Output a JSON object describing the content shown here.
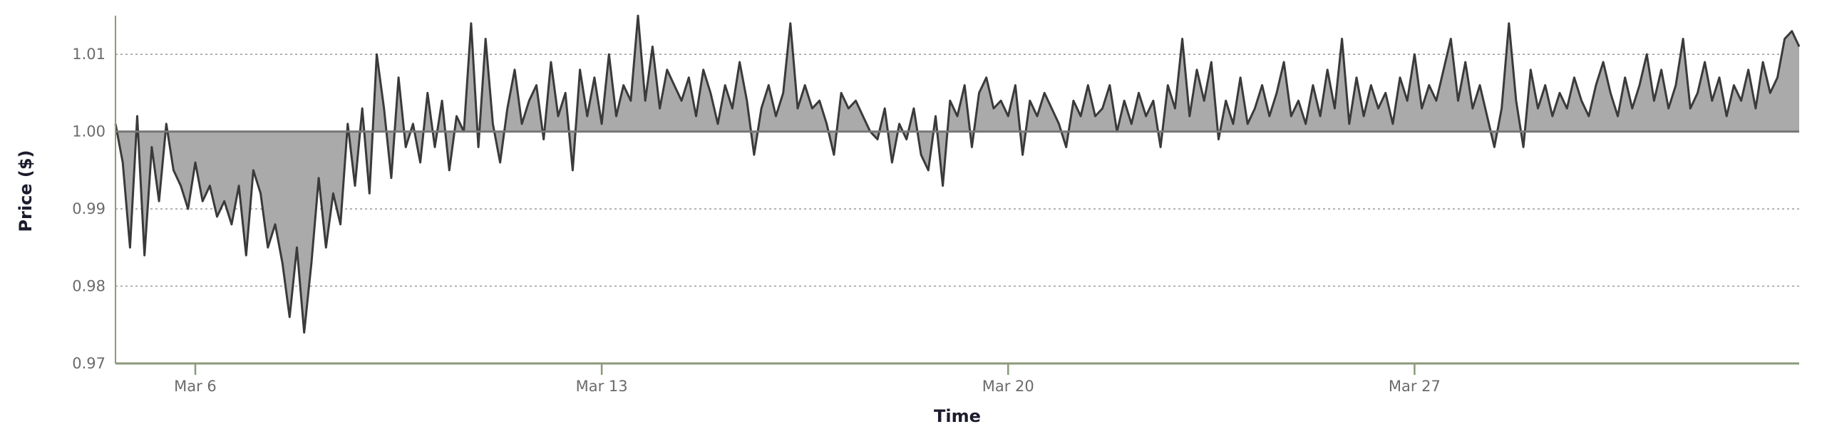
{
  "chart_data": {
    "type": "area",
    "title": "",
    "xlabel": "Time",
    "ylabel": "Price ($)",
    "baseline": 1.0,
    "ylim": [
      0.97,
      1.015
    ],
    "yticks": [
      {
        "value": 0.97,
        "label": "0.97"
      },
      {
        "value": 0.98,
        "label": "0.98"
      },
      {
        "value": 0.99,
        "label": "0.99"
      },
      {
        "value": 1.0,
        "label": "1.00"
      },
      {
        "value": 1.01,
        "label": "1.01"
      }
    ],
    "xlim": [
      "2024-03-04T15:00",
      "2024-04-02T15:00"
    ],
    "xticks": [
      {
        "date": "2024-03-06",
        "label": "Mar 6"
      },
      {
        "date": "2024-03-13",
        "label": "Mar 13"
      },
      {
        "date": "2024-03-20",
        "label": "Mar 20"
      },
      {
        "date": "2024-03-27",
        "label": "Mar 27"
      }
    ],
    "grid": {
      "horizontal": true,
      "vertical": false
    },
    "colors": {
      "line": "#3a3a3a",
      "fill": "#aaaaaa",
      "axis": "#8a9a7a",
      "baseline": "#777777",
      "grid": "#999999"
    },
    "series": [
      {
        "x": [
          "2024-03-04T15:00",
          "2024-03-04T18:00",
          "2024-03-04T21:00",
          "2024-03-05T00:00",
          "2024-03-05T03:00",
          "2024-03-05T06:00",
          "2024-03-05T09:00",
          "2024-03-05T12:00",
          "2024-03-05T15:00",
          "2024-03-05T18:00",
          "2024-03-05T21:00",
          "2024-03-06T00:00",
          "2024-03-06T03:00",
          "2024-03-06T06:00",
          "2024-03-06T09:00",
          "2024-03-06T12:00",
          "2024-03-06T15:00",
          "2024-03-06T18:00",
          "2024-03-06T21:00",
          "2024-03-07T00:00",
          "2024-03-07T03:00",
          "2024-03-07T06:00",
          "2024-03-07T09:00",
          "2024-03-07T12:00",
          "2024-03-07T15:00",
          "2024-03-07T18:00",
          "2024-03-07T21:00",
          "2024-03-08T00:00",
          "2024-03-08T03:00",
          "2024-03-08T06:00",
          "2024-03-08T09:00",
          "2024-03-08T12:00",
          "2024-03-08T15:00",
          "2024-03-08T18:00",
          "2024-03-08T21:00",
          "2024-03-09T00:00",
          "2024-03-09T03:00",
          "2024-03-09T06:00",
          "2024-03-09T09:00",
          "2024-03-09T12:00",
          "2024-03-09T15:00",
          "2024-03-09T18:00",
          "2024-03-09T21:00",
          "2024-03-10T00:00",
          "2024-03-10T03:00",
          "2024-03-10T06:00",
          "2024-03-10T09:00",
          "2024-03-10T12:00",
          "2024-03-10T15:00",
          "2024-03-10T18:00",
          "2024-03-10T21:00",
          "2024-03-11T00:00",
          "2024-03-11T03:00",
          "2024-03-11T06:00",
          "2024-03-11T09:00",
          "2024-03-11T12:00",
          "2024-03-11T15:00",
          "2024-03-11T18:00",
          "2024-03-11T21:00",
          "2024-03-12T00:00",
          "2024-03-12T03:00",
          "2024-03-12T06:00",
          "2024-03-12T09:00",
          "2024-03-12T12:00",
          "2024-03-12T15:00",
          "2024-03-12T18:00",
          "2024-03-12T21:00",
          "2024-03-13T00:00",
          "2024-03-13T03:00",
          "2024-03-13T06:00",
          "2024-03-13T09:00",
          "2024-03-13T12:00",
          "2024-03-13T15:00",
          "2024-03-13T18:00",
          "2024-03-13T21:00",
          "2024-03-14T00:00",
          "2024-03-14T03:00",
          "2024-03-14T06:00",
          "2024-03-14T09:00",
          "2024-03-14T12:00",
          "2024-03-14T15:00",
          "2024-03-14T18:00",
          "2024-03-14T21:00",
          "2024-03-15T00:00",
          "2024-03-15T03:00",
          "2024-03-15T06:00",
          "2024-03-15T09:00",
          "2024-03-15T12:00",
          "2024-03-15T15:00",
          "2024-03-15T18:00",
          "2024-03-15T21:00",
          "2024-03-16T00:00",
          "2024-03-16T03:00",
          "2024-03-16T06:00",
          "2024-03-16T09:00",
          "2024-03-16T12:00",
          "2024-03-16T15:00",
          "2024-03-16T18:00",
          "2024-03-16T21:00",
          "2024-03-17T00:00",
          "2024-03-17T03:00",
          "2024-03-17T06:00",
          "2024-03-17T09:00",
          "2024-03-17T12:00",
          "2024-03-17T15:00",
          "2024-03-17T18:00",
          "2024-03-17T21:00",
          "2024-03-18T00:00",
          "2024-03-18T03:00",
          "2024-03-18T06:00",
          "2024-03-18T09:00",
          "2024-03-18T12:00",
          "2024-03-18T15:00",
          "2024-03-18T18:00",
          "2024-03-18T21:00",
          "2024-03-19T00:00",
          "2024-03-19T03:00",
          "2024-03-19T06:00",
          "2024-03-19T09:00",
          "2024-03-19T12:00",
          "2024-03-19T15:00",
          "2024-03-19T18:00",
          "2024-03-19T21:00",
          "2024-03-20T00:00",
          "2024-03-20T03:00",
          "2024-03-20T06:00",
          "2024-03-20T09:00",
          "2024-03-20T12:00",
          "2024-03-20T15:00",
          "2024-03-20T18:00",
          "2024-03-20T21:00",
          "2024-03-21T00:00",
          "2024-03-21T03:00",
          "2024-03-21T06:00",
          "2024-03-21T09:00",
          "2024-03-21T12:00",
          "2024-03-21T15:00",
          "2024-03-21T18:00",
          "2024-03-21T21:00",
          "2024-03-22T00:00",
          "2024-03-22T03:00",
          "2024-03-22T06:00",
          "2024-03-22T09:00",
          "2024-03-22T12:00",
          "2024-03-22T15:00",
          "2024-03-22T18:00",
          "2024-03-22T21:00",
          "2024-03-23T00:00",
          "2024-03-23T03:00",
          "2024-03-23T06:00",
          "2024-03-23T09:00",
          "2024-03-23T12:00",
          "2024-03-23T15:00",
          "2024-03-23T18:00",
          "2024-03-23T21:00",
          "2024-03-24T00:00",
          "2024-03-24T03:00",
          "2024-03-24T06:00",
          "2024-03-24T09:00",
          "2024-03-24T12:00",
          "2024-03-24T15:00",
          "2024-03-24T18:00",
          "2024-03-24T21:00",
          "2024-03-25T00:00",
          "2024-03-25T03:00",
          "2024-03-25T06:00",
          "2024-03-25T09:00",
          "2024-03-25T12:00",
          "2024-03-25T15:00",
          "2024-03-25T18:00",
          "2024-03-25T21:00",
          "2024-03-26T00:00",
          "2024-03-26T03:00",
          "2024-03-26T06:00",
          "2024-03-26T09:00",
          "2024-03-26T12:00",
          "2024-03-26T15:00",
          "2024-03-26T18:00",
          "2024-03-26T21:00",
          "2024-03-27T00:00",
          "2024-03-27T03:00",
          "2024-03-27T06:00",
          "2024-03-27T09:00",
          "2024-03-27T12:00",
          "2024-03-27T15:00",
          "2024-03-27T18:00",
          "2024-03-27T21:00",
          "2024-03-28T00:00",
          "2024-03-28T03:00",
          "2024-03-28T06:00",
          "2024-03-28T09:00",
          "2024-03-28T12:00",
          "2024-03-28T15:00",
          "2024-03-28T18:00",
          "2024-03-28T21:00",
          "2024-03-29T00:00",
          "2024-03-29T03:00",
          "2024-03-29T06:00",
          "2024-03-29T09:00",
          "2024-03-29T12:00",
          "2024-03-29T15:00",
          "2024-03-29T18:00",
          "2024-03-29T21:00",
          "2024-03-30T00:00",
          "2024-03-30T03:00",
          "2024-03-30T06:00",
          "2024-03-30T09:00",
          "2024-03-30T12:00",
          "2024-03-30T15:00",
          "2024-03-30T18:00",
          "2024-03-30T21:00",
          "2024-03-31T00:00",
          "2024-03-31T03:00",
          "2024-03-31T06:00",
          "2024-03-31T09:00",
          "2024-03-31T12:00",
          "2024-03-31T15:00",
          "2024-03-31T18:00",
          "2024-03-31T21:00",
          "2024-04-01T00:00",
          "2024-04-01T03:00",
          "2024-04-01T06:00",
          "2024-04-01T09:00",
          "2024-04-01T12:00",
          "2024-04-01T15:00",
          "2024-04-01T18:00",
          "2024-04-01T21:00",
          "2024-04-02T00:00",
          "2024-04-02T03:00",
          "2024-04-02T06:00",
          "2024-04-02T09:00",
          "2024-04-02T12:00",
          "2024-04-02T15:00"
        ],
        "y": [
          1.001,
          0.996,
          0.985,
          1.002,
          0.984,
          0.998,
          0.991,
          1.001,
          0.995,
          0.993,
          0.99,
          0.996,
          0.991,
          0.993,
          0.989,
          0.991,
          0.988,
          0.993,
          0.984,
          0.995,
          0.992,
          0.985,
          0.988,
          0.983,
          0.976,
          0.985,
          0.974,
          0.983,
          0.994,
          0.985,
          0.992,
          0.988,
          1.001,
          0.993,
          1.003,
          0.992,
          1.01,
          1.003,
          0.994,
          1.007,
          0.998,
          1.001,
          0.996,
          1.005,
          0.998,
          1.004,
          0.995,
          1.002,
          1.0,
          1.014,
          0.998,
          1.012,
          1.001,
          0.996,
          1.003,
          1.008,
          1.001,
          1.004,
          1.006,
          0.999,
          1.009,
          1.002,
          1.005,
          0.995,
          1.008,
          1.002,
          1.007,
          1.001,
          1.01,
          1.002,
          1.006,
          1.004,
          1.015,
          1.004,
          1.011,
          1.003,
          1.008,
          1.006,
          1.004,
          1.007,
          1.002,
          1.008,
          1.005,
          1.001,
          1.006,
          1.003,
          1.009,
          1.004,
          0.997,
          1.003,
          1.006,
          1.002,
          1.005,
          1.014,
          1.003,
          1.006,
          1.003,
          1.004,
          1.001,
          0.997,
          1.005,
          1.003,
          1.004,
          1.002,
          1.0,
          0.999,
          1.003,
          0.996,
          1.001,
          0.999,
          1.003,
          0.997,
          0.995,
          1.002,
          0.993,
          1.004,
          1.002,
          1.006,
          0.998,
          1.005,
          1.007,
          1.003,
          1.004,
          1.002,
          1.006,
          0.997,
          1.004,
          1.002,
          1.005,
          1.003,
          1.001,
          0.998,
          1.004,
          1.002,
          1.006,
          1.002,
          1.003,
          1.006,
          1.0,
          1.004,
          1.001,
          1.005,
          1.002,
          1.004,
          0.998,
          1.006,
          1.003,
          1.012,
          1.002,
          1.008,
          1.004,
          1.009,
          0.999,
          1.004,
          1.001,
          1.007,
          1.001,
          1.003,
          1.006,
          1.002,
          1.005,
          1.009,
          1.002,
          1.004,
          1.001,
          1.006,
          1.002,
          1.008,
          1.003,
          1.012,
          1.001,
          1.007,
          1.002,
          1.006,
          1.003,
          1.005,
          1.001,
          1.007,
          1.004,
          1.01,
          1.003,
          1.006,
          1.004,
          1.008,
          1.012,
          1.004,
          1.009,
          1.003,
          1.006,
          1.002,
          0.998,
          1.003,
          1.014,
          1.004,
          0.998,
          1.008,
          1.003,
          1.006,
          1.002,
          1.005,
          1.003,
          1.007,
          1.004,
          1.002,
          1.006,
          1.009,
          1.005,
          1.002,
          1.007,
          1.003,
          1.006,
          1.01,
          1.004,
          1.008,
          1.003,
          1.006,
          1.012,
          1.003,
          1.005,
          1.009,
          1.004,
          1.007,
          1.002,
          1.006,
          1.004,
          1.008,
          1.003,
          1.009,
          1.005,
          1.007,
          1.012,
          1.013,
          1.011
        ]
      }
    ]
  }
}
